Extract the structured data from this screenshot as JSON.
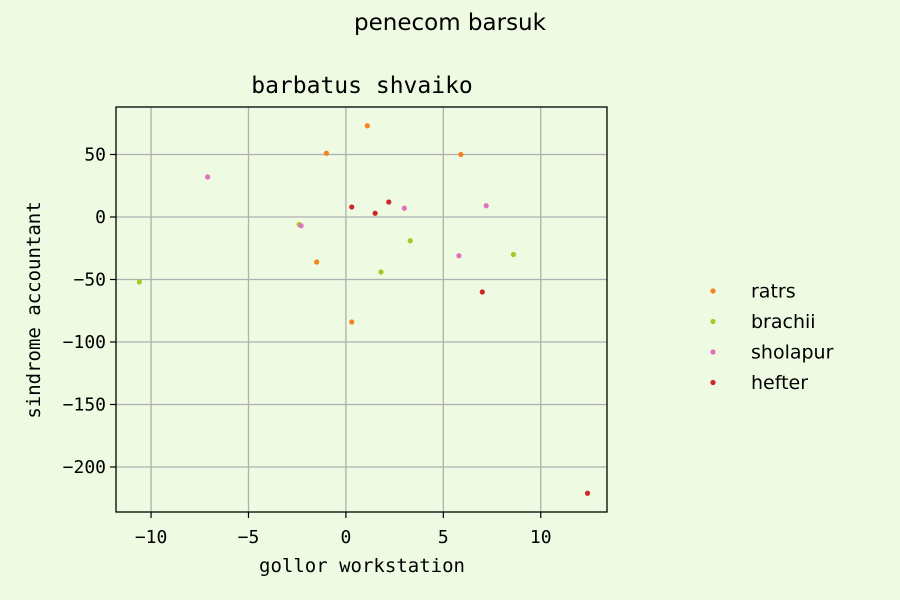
{
  "figure": {
    "suptitle": "penecom barsuk",
    "background": "#eefae2"
  },
  "chart_data": {
    "type": "scatter",
    "title": "barbatus shvaiko",
    "xlabel": "gollor workstation",
    "ylabel": "sindrome accountant",
    "xlim": [
      -11.8,
      13.4
    ],
    "ylim": [
      -236,
      88
    ],
    "xticks": [
      -10,
      -5,
      0,
      5,
      10
    ],
    "xtick_labels": [
      "−10",
      "−5",
      "0",
      "5",
      "10"
    ],
    "yticks": [
      50,
      0,
      -50,
      -100,
      -150,
      -200
    ],
    "ytick_labels": [
      "50",
      "0",
      "−50",
      "−100",
      "−150",
      "−200"
    ],
    "grid": true,
    "legend_position": "right",
    "series": [
      {
        "name": "ratrs",
        "color": "#f5831e",
        "points": [
          [
            1.1,
            73
          ],
          [
            -1.0,
            51
          ],
          [
            5.9,
            50
          ],
          [
            -1.5,
            -36
          ],
          [
            0.3,
            -84
          ]
        ]
      },
      {
        "name": "brachii",
        "color": "#a8c82a",
        "points": [
          [
            -10.6,
            -52
          ],
          [
            3.3,
            -19
          ],
          [
            1.8,
            -44
          ],
          [
            8.6,
            -30
          ],
          [
            -2.4,
            -6
          ]
        ]
      },
      {
        "name": "sholapur",
        "color": "#e070c0",
        "points": [
          [
            -7.1,
            32
          ],
          [
            -2.3,
            -7
          ],
          [
            3.0,
            7
          ],
          [
            7.2,
            9
          ],
          [
            5.8,
            -31
          ]
        ]
      },
      {
        "name": "hefter",
        "color": "#d02828",
        "points": [
          [
            0.3,
            8
          ],
          [
            1.5,
            3
          ],
          [
            2.2,
            12
          ],
          [
            7.0,
            -60
          ],
          [
            12.4,
            -221
          ]
        ]
      }
    ]
  }
}
